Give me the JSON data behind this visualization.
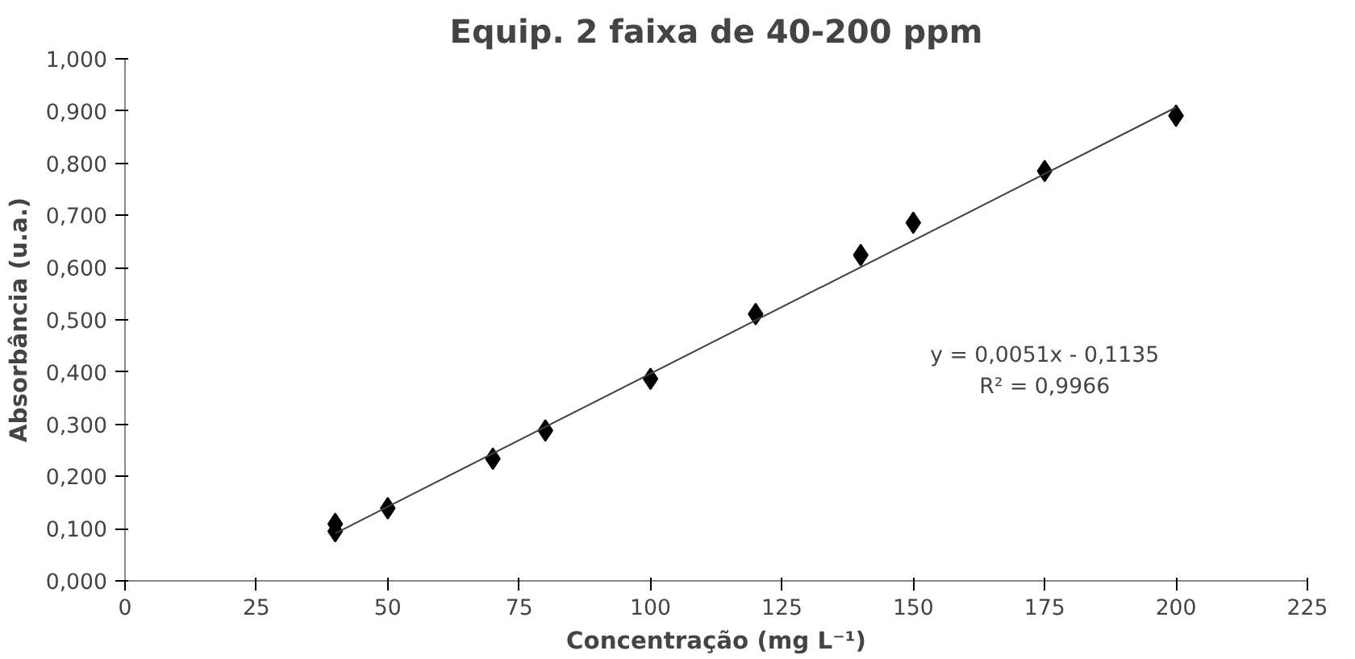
{
  "chart_data": {
    "type": "scatter",
    "title": "Equip. 2 faixa de 40-200 ppm",
    "xlabel": "Concentração (mg L⁻¹)",
    "ylabel": "Absorbância (u.a.)",
    "series": [
      {
        "color": "#000000",
        "marker": "diamond",
        "x": [
          40,
          40,
          50,
          70,
          80,
          100,
          120,
          140,
          150,
          175,
          200
        ],
        "values": [
          0.109,
          0.095,
          0.139,
          0.234,
          0.288,
          0.387,
          0.511,
          0.624,
          0.686,
          0.785,
          0.891
        ]
      },
      {
        "type": "line",
        "color": "#404040",
        "marker": "none",
        "line_style": "solid",
        "x": [
          40,
          200
        ],
        "values": [
          0.091,
          0.907
        ]
      }
    ],
    "annotations": [
      "y = 0,0051x - 0,1135",
      "R² = 0,9966"
    ],
    "xlim": [
      0,
      225
    ],
    "xticks": [
      0,
      25,
      50,
      75,
      100,
      125,
      150,
      175,
      200,
      225
    ],
    "ylim": [
      0,
      1
    ],
    "yticks": [
      {
        "value": 0,
        "label": "0,000"
      },
      {
        "value": 0.1,
        "label": "0,100"
      },
      {
        "value": 0.2,
        "label": "0,200"
      },
      {
        "value": 0.3,
        "label": "0,300"
      },
      {
        "value": 0.4,
        "label": "0,400"
      },
      {
        "value": 0.5,
        "label": "0,500"
      },
      {
        "value": 0.6,
        "label": "0,600"
      },
      {
        "value": 0.7,
        "label": "0,700"
      },
      {
        "value": 0.8,
        "label": "0,800"
      },
      {
        "value": 0.9,
        "label": "0,900"
      },
      {
        "value": 1,
        "label": "1,000"
      }
    ],
    "grid": false
  }
}
